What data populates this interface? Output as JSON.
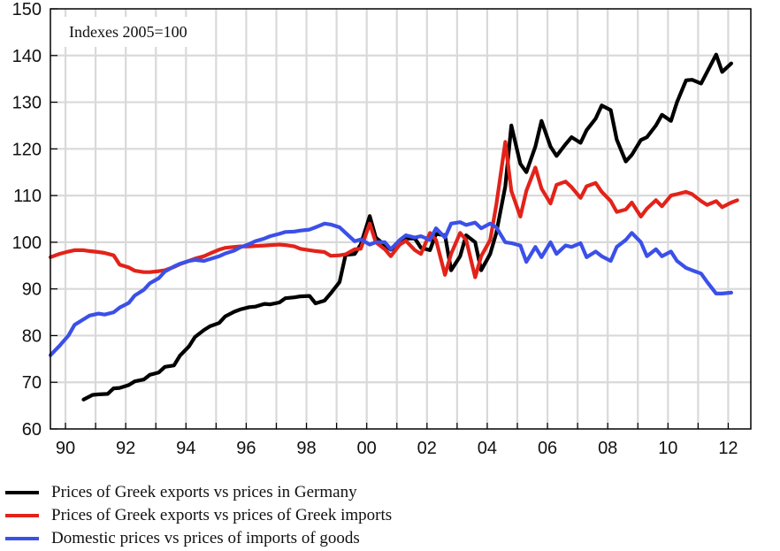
{
  "chart_data": {
    "type": "line",
    "annotation": "Indexes 2005=100",
    "x_tick_labels": [
      "90",
      "92",
      "94",
      "96",
      "98",
      "00",
      "02",
      "04",
      "06",
      "08",
      "10",
      "12"
    ],
    "x_tick_years": [
      1990,
      1992,
      1994,
      1996,
      1998,
      2000,
      2002,
      2004,
      2006,
      2008,
      2010,
      2012
    ],
    "xlim": [
      1989.5,
      2012.75
    ],
    "ylim": [
      60,
      150
    ],
    "y_ticks": [
      60,
      70,
      80,
      90,
      100,
      110,
      120,
      130,
      140,
      150
    ],
    "grid": true,
    "legend_position": "bottom",
    "series": [
      {
        "name": "Prices of Greek exports vs prices in Germany",
        "color": "#000000",
        "points": [
          [
            1990.6,
            66.3
          ],
          [
            1990.9,
            67.3
          ],
          [
            1991.1,
            67.4
          ],
          [
            1991.4,
            67.5
          ],
          [
            1991.6,
            68.7
          ],
          [
            1991.8,
            68.8
          ],
          [
            1992.1,
            69.4
          ],
          [
            1992.3,
            70.2
          ],
          [
            1992.6,
            70.6
          ],
          [
            1992.8,
            71.6
          ],
          [
            1993.1,
            72.1
          ],
          [
            1993.3,
            73.3
          ],
          [
            1993.6,
            73.6
          ],
          [
            1993.8,
            75.7
          ],
          [
            1994.1,
            77.7
          ],
          [
            1994.3,
            79.7
          ],
          [
            1994.6,
            81.2
          ],
          [
            1994.8,
            82.0
          ],
          [
            1995.1,
            82.7
          ],
          [
            1995.3,
            84.1
          ],
          [
            1995.6,
            85.1
          ],
          [
            1995.8,
            85.6
          ],
          [
            1996.1,
            86.1
          ],
          [
            1996.3,
            86.2
          ],
          [
            1996.6,
            86.8
          ],
          [
            1996.8,
            86.7
          ],
          [
            1997.1,
            87.1
          ],
          [
            1997.3,
            88.0
          ],
          [
            1997.6,
            88.2
          ],
          [
            1997.8,
            88.4
          ],
          [
            1998.1,
            88.5
          ],
          [
            1998.3,
            86.9
          ],
          [
            1998.6,
            87.5
          ],
          [
            1998.8,
            89.0
          ],
          [
            1999.1,
            91.5
          ],
          [
            1999.3,
            97.3
          ],
          [
            1999.6,
            97.5
          ],
          [
            1999.8,
            99.5
          ],
          [
            2000.1,
            105.6
          ],
          [
            2000.3,
            101.0
          ],
          [
            2000.6,
            99.4
          ],
          [
            2000.8,
            98.4
          ],
          [
            2001.1,
            99.5
          ],
          [
            2001.3,
            100.8
          ],
          [
            2001.6,
            100.8
          ],
          [
            2001.8,
            98.8
          ],
          [
            2002.1,
            98.3
          ],
          [
            2002.3,
            101.8
          ],
          [
            2002.6,
            101.5
          ],
          [
            2002.8,
            94.0
          ],
          [
            2003.1,
            97.0
          ],
          [
            2003.3,
            101.5
          ],
          [
            2003.6,
            100.0
          ],
          [
            2003.8,
            94.0
          ],
          [
            2004.1,
            97.5
          ],
          [
            2004.3,
            102.0
          ],
          [
            2004.6,
            112.0
          ],
          [
            2004.8,
            125.0
          ],
          [
            2005.1,
            116.8
          ],
          [
            2005.3,
            115.0
          ],
          [
            2005.6,
            120.5
          ],
          [
            2005.8,
            126.0
          ],
          [
            2006.1,
            120.5
          ],
          [
            2006.3,
            118.5
          ],
          [
            2006.6,
            121.0
          ],
          [
            2006.8,
            122.5
          ],
          [
            2007.1,
            121.3
          ],
          [
            2007.3,
            124.0
          ],
          [
            2007.6,
            126.5
          ],
          [
            2007.8,
            129.3
          ],
          [
            2008.1,
            128.3
          ],
          [
            2008.3,
            122.0
          ],
          [
            2008.6,
            117.3
          ],
          [
            2008.8,
            118.7
          ],
          [
            2009.1,
            121.9
          ],
          [
            2009.3,
            122.5
          ],
          [
            2009.6,
            125.0
          ],
          [
            2009.8,
            127.3
          ],
          [
            2010.1,
            126.0
          ],
          [
            2010.3,
            130.0
          ],
          [
            2010.6,
            134.7
          ],
          [
            2010.8,
            134.8
          ],
          [
            2011.1,
            134.0
          ],
          [
            2011.3,
            136.5
          ],
          [
            2011.6,
            140.2
          ],
          [
            2011.8,
            136.5
          ],
          [
            2012.1,
            138.3
          ]
        ]
      },
      {
        "name": "Prices of Greek exports vs prices of Greek imports",
        "color": "#e2231a",
        "points": [
          [
            1989.5,
            96.8
          ],
          [
            1989.8,
            97.5
          ],
          [
            1990.1,
            98.0
          ],
          [
            1990.3,
            98.3
          ],
          [
            1990.6,
            98.3
          ],
          [
            1990.8,
            98.1
          ],
          [
            1991.1,
            97.9
          ],
          [
            1991.3,
            97.7
          ],
          [
            1991.6,
            97.2
          ],
          [
            1991.8,
            95.2
          ],
          [
            1992.1,
            94.6
          ],
          [
            1992.3,
            93.9
          ],
          [
            1992.6,
            93.6
          ],
          [
            1992.8,
            93.6
          ],
          [
            1993.1,
            93.8
          ],
          [
            1993.3,
            94.0
          ],
          [
            1993.6,
            94.7
          ],
          [
            1993.8,
            95.3
          ],
          [
            1994.1,
            96.0
          ],
          [
            1994.3,
            96.5
          ],
          [
            1994.6,
            97.0
          ],
          [
            1994.8,
            97.6
          ],
          [
            1995.1,
            98.4
          ],
          [
            1995.3,
            98.8
          ],
          [
            1995.6,
            99.0
          ],
          [
            1995.8,
            99.1
          ],
          [
            1996.1,
            99.1
          ],
          [
            1996.3,
            99.2
          ],
          [
            1996.6,
            99.3
          ],
          [
            1996.8,
            99.4
          ],
          [
            1997.1,
            99.5
          ],
          [
            1997.3,
            99.4
          ],
          [
            1997.6,
            99.1
          ],
          [
            1997.8,
            98.6
          ],
          [
            1998.1,
            98.3
          ],
          [
            1998.3,
            98.1
          ],
          [
            1998.6,
            97.9
          ],
          [
            1998.8,
            97.1
          ],
          [
            1999.1,
            97.2
          ],
          [
            1999.3,
            97.4
          ],
          [
            1999.6,
            98.5
          ],
          [
            1999.8,
            98.6
          ],
          [
            2000.1,
            104.0
          ],
          [
            2000.3,
            100.0
          ],
          [
            2000.6,
            98.5
          ],
          [
            2000.8,
            97.0
          ],
          [
            2001.1,
            99.5
          ],
          [
            2001.3,
            100.3
          ],
          [
            2001.6,
            98.3
          ],
          [
            2001.8,
            97.5
          ],
          [
            2002.1,
            102.0
          ],
          [
            2002.3,
            100.5
          ],
          [
            2002.6,
            93.0
          ],
          [
            2002.8,
            97.5
          ],
          [
            2003.1,
            102.0
          ],
          [
            2003.3,
            100.5
          ],
          [
            2003.6,
            92.5
          ],
          [
            2003.8,
            97.0
          ],
          [
            2004.1,
            100.5
          ],
          [
            2004.3,
            108.0
          ],
          [
            2004.6,
            121.5
          ],
          [
            2004.8,
            111.0
          ],
          [
            2005.1,
            105.5
          ],
          [
            2005.3,
            111.0
          ],
          [
            2005.6,
            116.0
          ],
          [
            2005.8,
            111.5
          ],
          [
            2006.1,
            108.3
          ],
          [
            2006.3,
            112.3
          ],
          [
            2006.6,
            113.0
          ],
          [
            2006.8,
            111.8
          ],
          [
            2007.1,
            109.5
          ],
          [
            2007.3,
            112.0
          ],
          [
            2007.6,
            112.7
          ],
          [
            2007.8,
            110.8
          ],
          [
            2008.1,
            108.8
          ],
          [
            2008.3,
            106.5
          ],
          [
            2008.6,
            107.0
          ],
          [
            2008.8,
            108.5
          ],
          [
            2009.1,
            105.5
          ],
          [
            2009.3,
            107.2
          ],
          [
            2009.6,
            109.0
          ],
          [
            2009.8,
            107.7
          ],
          [
            2010.1,
            110.0
          ],
          [
            2010.3,
            110.3
          ],
          [
            2010.6,
            110.8
          ],
          [
            2010.8,
            110.3
          ],
          [
            2011.1,
            108.8
          ],
          [
            2011.3,
            108.0
          ],
          [
            2011.6,
            108.8
          ],
          [
            2011.8,
            107.5
          ],
          [
            2012.1,
            108.5
          ],
          [
            2012.3,
            109.0
          ]
        ]
      },
      {
        "name": "Domestic prices vs prices of imports of goods",
        "color": "#3b50e8",
        "points": [
          [
            1989.5,
            75.8
          ],
          [
            1989.8,
            77.8
          ],
          [
            1990.1,
            80.0
          ],
          [
            1990.3,
            82.3
          ],
          [
            1990.6,
            83.5
          ],
          [
            1990.8,
            84.3
          ],
          [
            1991.1,
            84.7
          ],
          [
            1991.3,
            84.5
          ],
          [
            1991.6,
            85.0
          ],
          [
            1991.8,
            86.0
          ],
          [
            1992.1,
            87.0
          ],
          [
            1992.3,
            88.6
          ],
          [
            1992.6,
            89.8
          ],
          [
            1992.8,
            91.2
          ],
          [
            1993.1,
            92.3
          ],
          [
            1993.3,
            93.7
          ],
          [
            1993.6,
            94.8
          ],
          [
            1993.8,
            95.4
          ],
          [
            1994.1,
            96.0
          ],
          [
            1994.3,
            96.2
          ],
          [
            1994.6,
            96.0
          ],
          [
            1994.8,
            96.4
          ],
          [
            1995.1,
            97.0
          ],
          [
            1995.3,
            97.6
          ],
          [
            1995.6,
            98.2
          ],
          [
            1995.8,
            98.9
          ],
          [
            1996.1,
            99.6
          ],
          [
            1996.3,
            100.2
          ],
          [
            1996.6,
            100.8
          ],
          [
            1996.8,
            101.3
          ],
          [
            1997.1,
            101.8
          ],
          [
            1997.3,
            102.2
          ],
          [
            1997.6,
            102.3
          ],
          [
            1997.8,
            102.5
          ],
          [
            1998.1,
            102.7
          ],
          [
            1998.3,
            103.2
          ],
          [
            1998.6,
            104.0
          ],
          [
            1998.8,
            103.8
          ],
          [
            1999.1,
            103.2
          ],
          [
            1999.3,
            102.0
          ],
          [
            1999.6,
            100.2
          ],
          [
            1999.8,
            100.6
          ],
          [
            2000.1,
            99.5
          ],
          [
            2000.3,
            100.0
          ],
          [
            2000.6,
            100.0
          ],
          [
            2000.8,
            98.5
          ],
          [
            2001.1,
            100.5
          ],
          [
            2001.3,
            101.5
          ],
          [
            2001.6,
            101.0
          ],
          [
            2001.8,
            101.3
          ],
          [
            2002.1,
            100.5
          ],
          [
            2002.3,
            103.0
          ],
          [
            2002.6,
            101.0
          ],
          [
            2002.8,
            104.0
          ],
          [
            2003.1,
            104.3
          ],
          [
            2003.3,
            103.7
          ],
          [
            2003.6,
            104.2
          ],
          [
            2003.8,
            103.0
          ],
          [
            2004.1,
            104.0
          ],
          [
            2004.3,
            103.2
          ],
          [
            2004.6,
            100.0
          ],
          [
            2004.8,
            99.8
          ],
          [
            2005.1,
            99.3
          ],
          [
            2005.3,
            95.8
          ],
          [
            2005.6,
            99.0
          ],
          [
            2005.8,
            96.8
          ],
          [
            2006.1,
            100.0
          ],
          [
            2006.3,
            97.5
          ],
          [
            2006.6,
            99.3
          ],
          [
            2006.8,
            99.0
          ],
          [
            2007.1,
            99.8
          ],
          [
            2007.3,
            96.8
          ],
          [
            2007.6,
            98.0
          ],
          [
            2007.8,
            97.0
          ],
          [
            2008.1,
            96.0
          ],
          [
            2008.3,
            99.0
          ],
          [
            2008.6,
            100.5
          ],
          [
            2008.8,
            102.0
          ],
          [
            2009.1,
            100.0
          ],
          [
            2009.3,
            97.0
          ],
          [
            2009.6,
            98.5
          ],
          [
            2009.8,
            97.0
          ],
          [
            2010.1,
            98.0
          ],
          [
            2010.3,
            96.0
          ],
          [
            2010.6,
            94.5
          ],
          [
            2010.8,
            94.0
          ],
          [
            2011.1,
            93.3
          ],
          [
            2011.3,
            91.5
          ],
          [
            2011.6,
            89.0
          ],
          [
            2011.8,
            89.0
          ],
          [
            2012.1,
            89.2
          ]
        ]
      }
    ]
  }
}
